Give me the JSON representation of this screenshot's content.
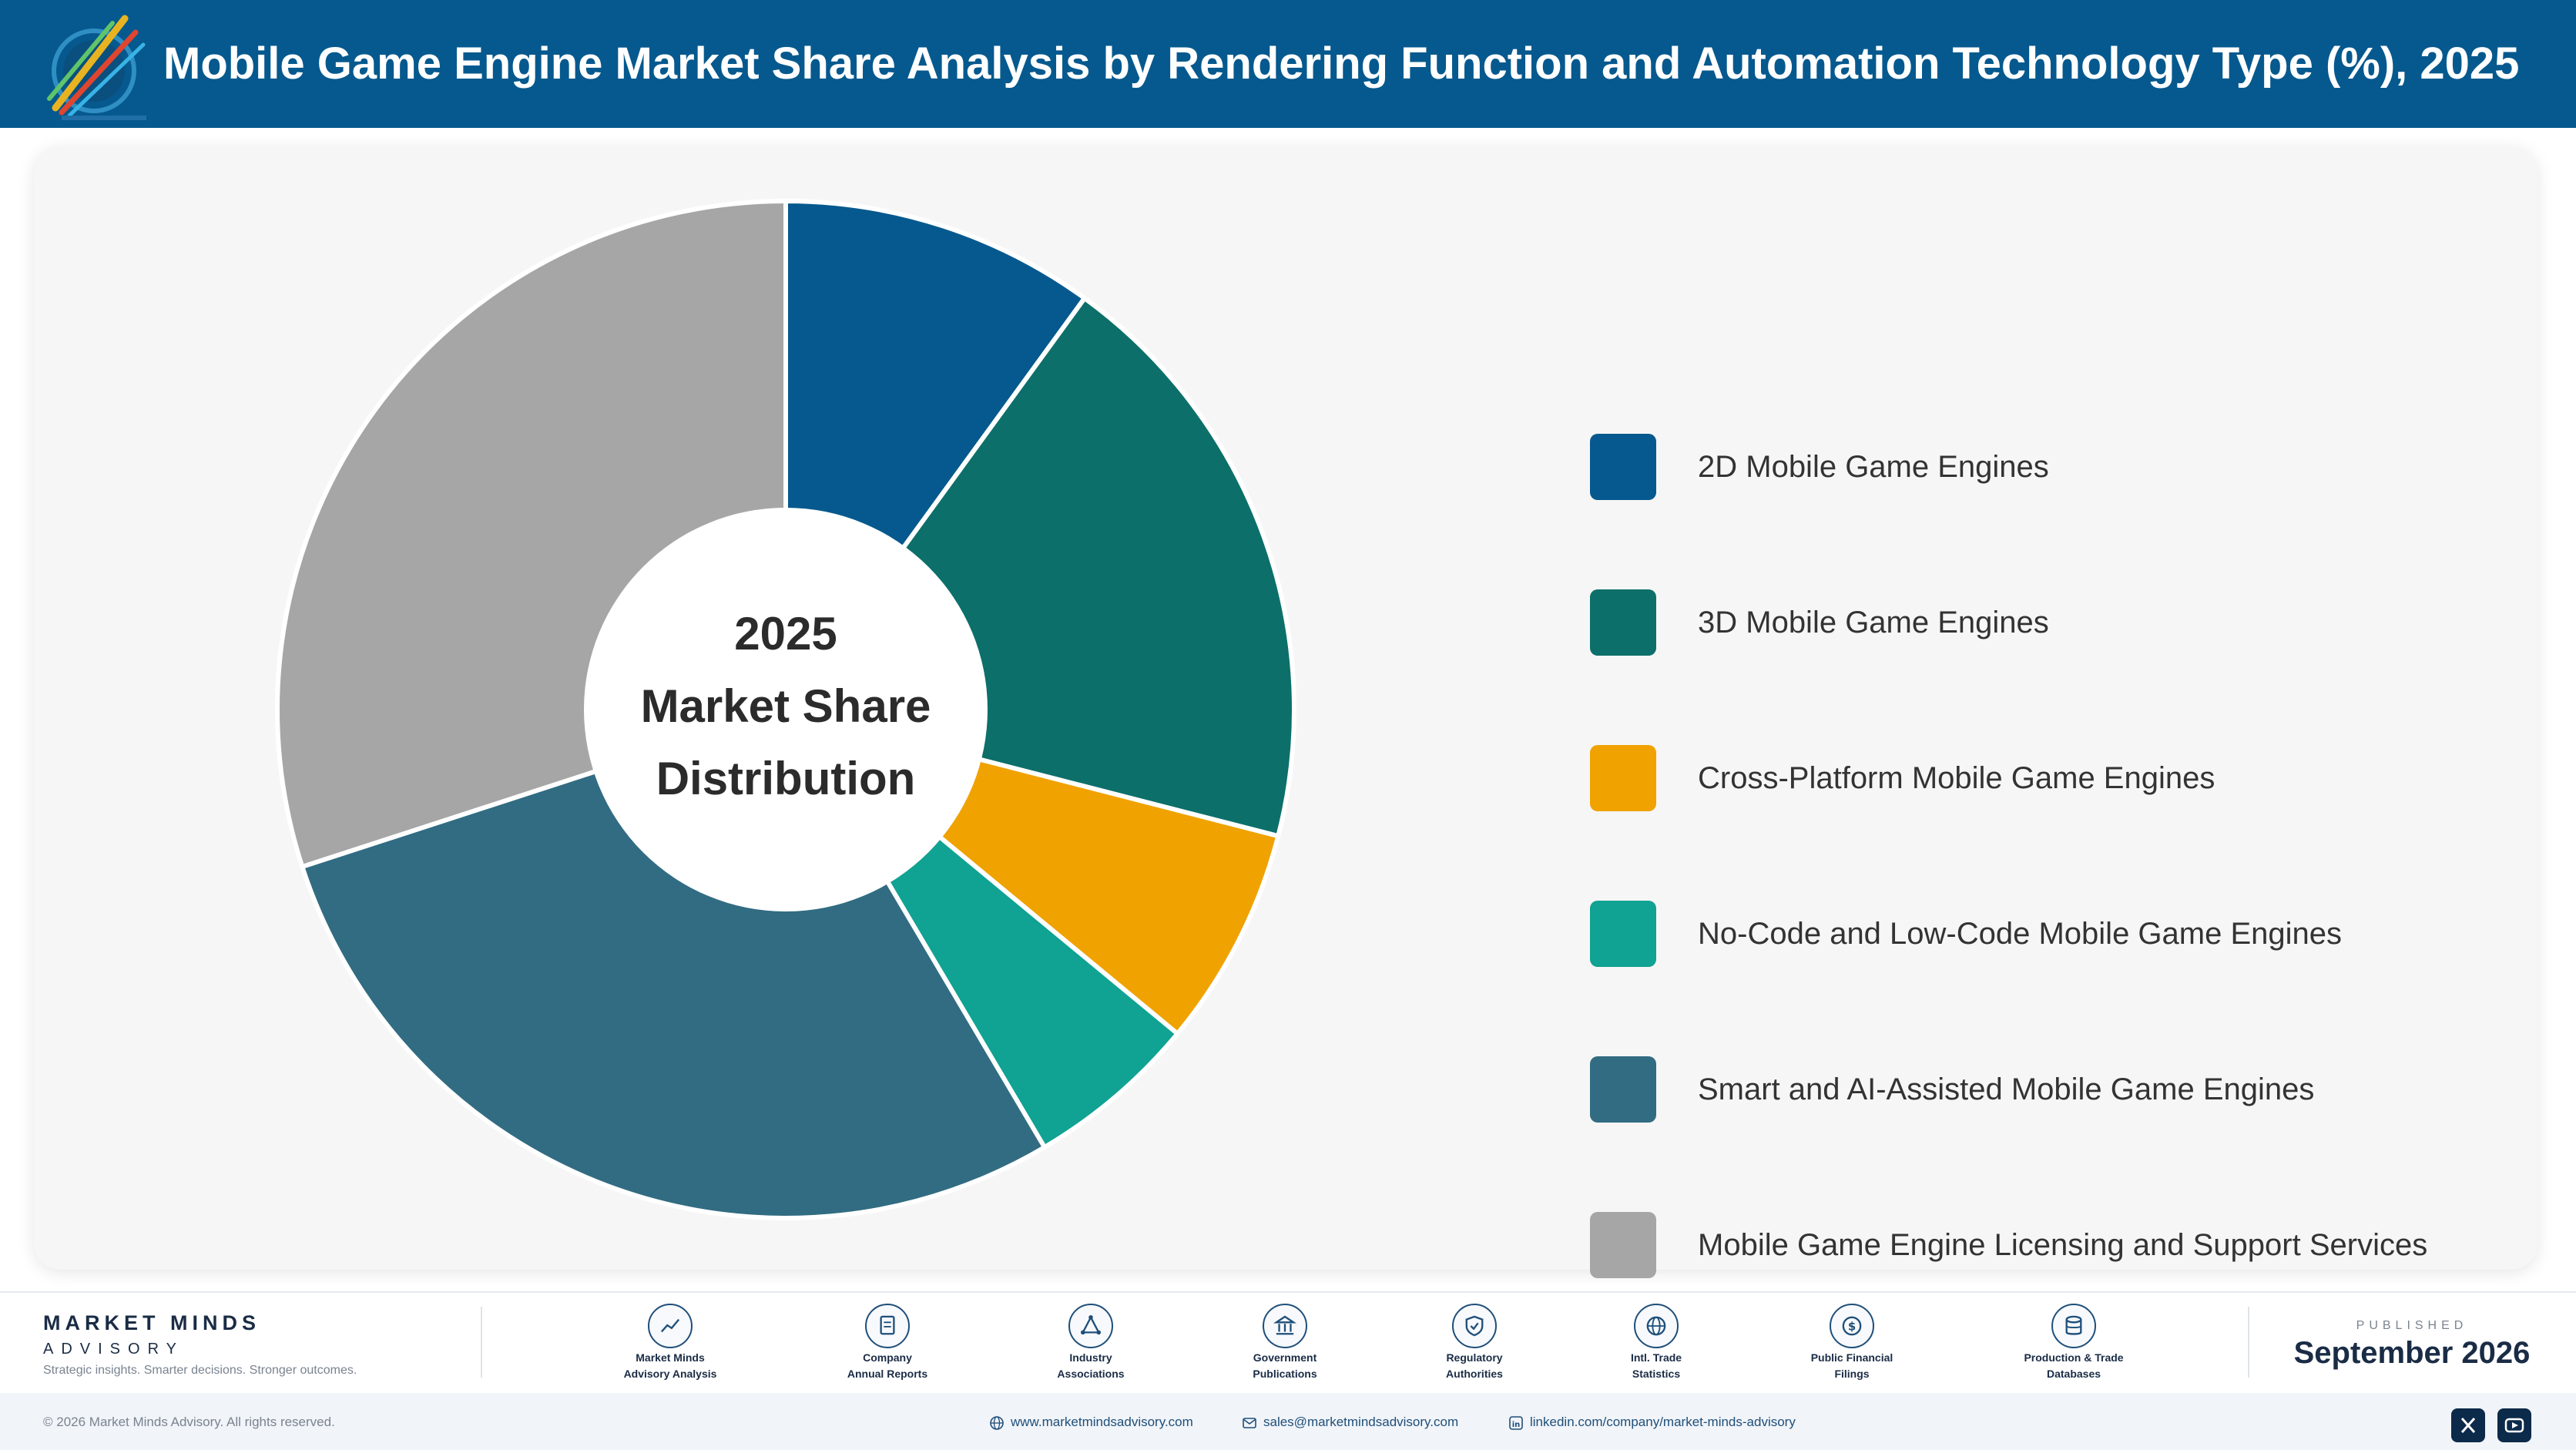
{
  "header": {
    "title": "Mobile Game Engine Market Share Analysis by Rendering Function and Automation Technology Type (%), 2025",
    "logo_icon": "market-minds-logo-icon",
    "background_color": "#06598e"
  },
  "chart_data": {
    "type": "pie",
    "variant": "donut",
    "title": "Mobile Game Engine Market Share Analysis by Rendering Function and Automation Technology Type (%), 2025",
    "center_label": [
      "2025",
      "Market Share",
      "Distribution"
    ],
    "legend_position": "right",
    "start_angle_deg": 0,
    "direction": "clockwise",
    "slices": [
      {
        "label": "2D Mobile Game Engines",
        "value": 10,
        "color": "#06598e"
      },
      {
        "label": "3D Mobile Game Engines",
        "value": 19,
        "color": "#0c6f6a"
      },
      {
        "label": "Cross-Platform Mobile Game Engines",
        "value": 7,
        "color": "#f0a200"
      },
      {
        "label": "No-Code and Low-Code Mobile Game Engines",
        "value": 5.5,
        "color": "#10a292"
      },
      {
        "label": "Smart and AI-Assisted Mobile Game Engines",
        "value": 28.5,
        "color": "#316c82"
      },
      {
        "label": "Mobile Game Engine Licensing and Support Services",
        "value": 30,
        "color": "#a6a6a6"
      }
    ]
  },
  "footer": {
    "brand_name": "MARKET MINDS",
    "brand_sub": "ADVISORY",
    "tagline": "Strategic insights. Smarter decisions. Stronger outcomes.",
    "sources": [
      {
        "label1": "Market Minds",
        "label2": "Advisory Analysis",
        "icon": "trend-chart-icon"
      },
      {
        "label1": "Company",
        "label2": "Annual Reports",
        "icon": "document-icon"
      },
      {
        "label1": "Industry",
        "label2": "Associations",
        "icon": "network-triangle-icon"
      },
      {
        "label1": "Government",
        "label2": "Publications",
        "icon": "government-building-icon"
      },
      {
        "label1": "Regulatory",
        "label2": "Authorities",
        "icon": "shield-check-icon"
      },
      {
        "label1": "Intl. Trade",
        "label2": "Statistics",
        "icon": "globe-icon"
      },
      {
        "label1": "Public Financial",
        "label2": "Filings",
        "icon": "dollar-coin-icon"
      },
      {
        "label1": "Production & Trade",
        "label2": "Databases",
        "icon": "database-icon"
      }
    ],
    "published_label": "PUBLISHED",
    "published_date": "September 2026",
    "copyright": "© 2026 Market Minds Advisory. All rights reserved.",
    "website": "www.marketmindsadvisory.com",
    "email": "sales@marketmindsadvisory.com",
    "linkedin": "linkedin.com/company/market-minds-advisory",
    "social_icons": [
      "x-icon",
      "youtube-icon"
    ]
  }
}
